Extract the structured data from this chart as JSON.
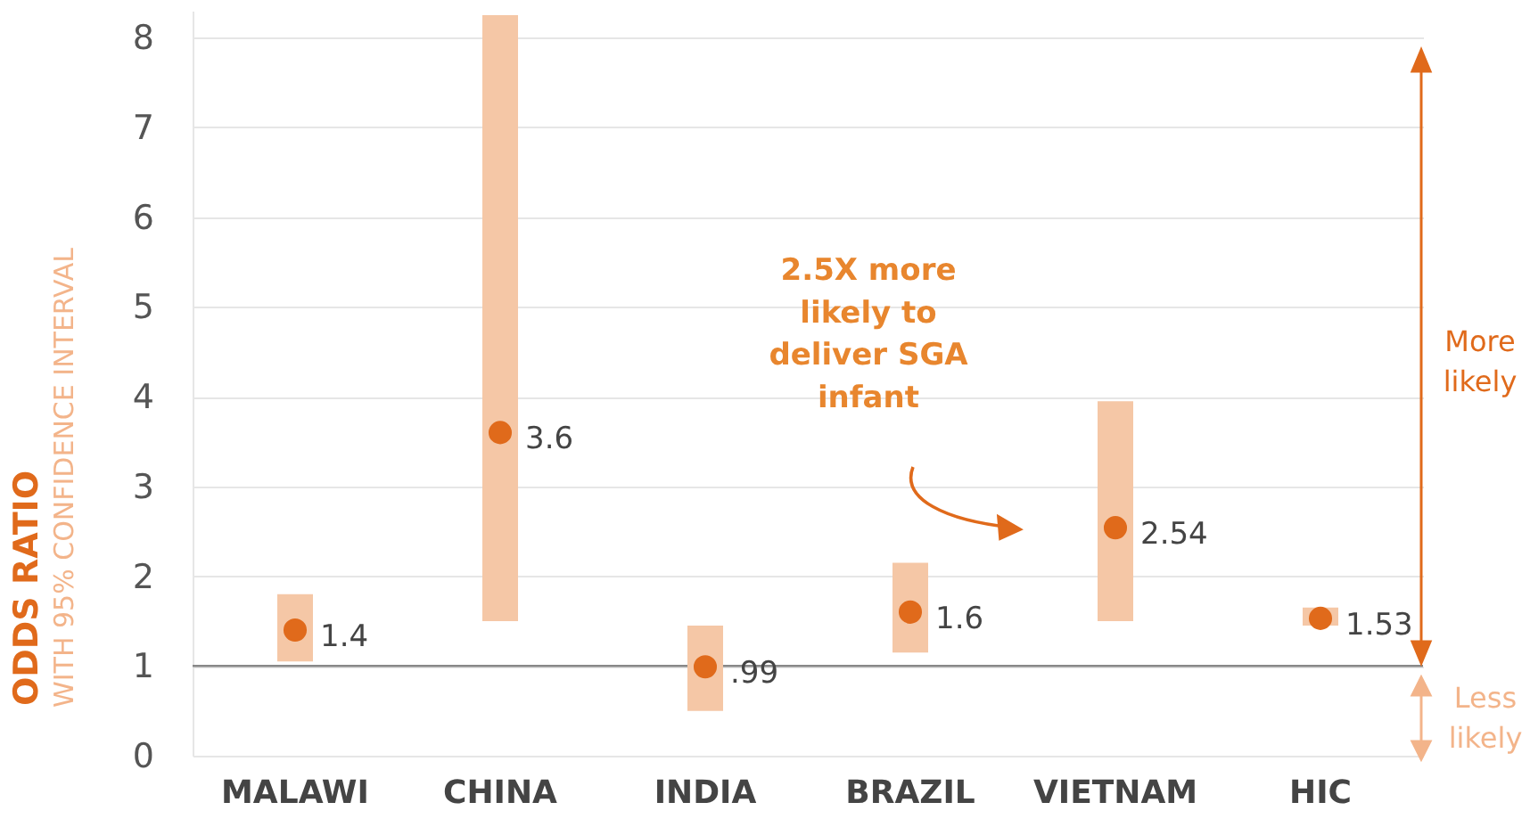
{
  "chart_data": {
    "type": "scatter",
    "categories": [
      "MALAWI",
      "CHINA",
      "INDIA",
      "BRAZIL",
      "VIETNAM",
      "HIC"
    ],
    "series": [
      {
        "color": "#e06a1b",
        "values": [
          1.4,
          3.6,
          0.99,
          1.6,
          2.54,
          1.53
        ],
        "errors": [
          [
            1.05,
            1.8
          ],
          [
            1.5,
            8.25
          ],
          [
            0.5,
            1.45
          ],
          [
            1.15,
            2.15
          ],
          [
            1.5,
            3.95
          ],
          [
            1.45,
            1.65
          ]
        ],
        "value_labels": [
          "1.4",
          "3.6",
          ".99",
          "1.6",
          "2.54",
          "1.53"
        ]
      }
    ],
    "ylabel": "ODDS RATIO",
    "annotations": [
      "2.5X more\nlikely to\ndeliver SGA\ninfant",
      "More\nlikely",
      "Less\nlikely",
      "WITH 95% CONFIDENCE INTERVAL"
    ],
    "ylim": [
      0,
      8.3
    ],
    "yticks": [
      0,
      1,
      2,
      3,
      4,
      5,
      6,
      7,
      8
    ],
    "grid": "y",
    "marker": "circle",
    "ref_lines": [
      {
        "axis": "y",
        "value": 1,
        "color": "#888888"
      }
    ]
  }
}
